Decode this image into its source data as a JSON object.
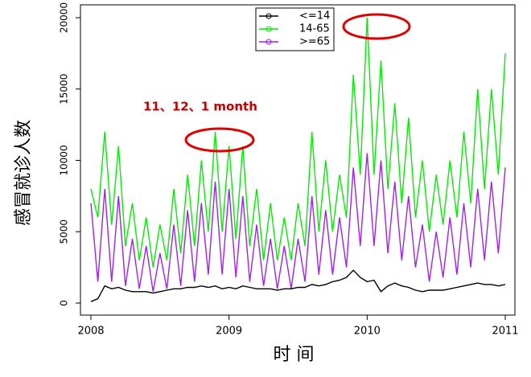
{
  "chart_data": {
    "type": "line",
    "y_label": "感冒就诊人数",
    "x_label": "时 间",
    "annotation": "11、12、1 month",
    "x": [
      2008.0,
      2008.05,
      2008.1,
      2008.15,
      2008.2,
      2008.25,
      2008.3,
      2008.35,
      2008.4,
      2008.45,
      2008.5,
      2008.55,
      2008.6,
      2008.65,
      2008.7,
      2008.75,
      2008.8,
      2008.85,
      2008.9,
      2008.95,
      2009.0,
      2009.05,
      2009.1,
      2009.15,
      2009.2,
      2009.25,
      2009.3,
      2009.35,
      2009.4,
      2009.45,
      2009.5,
      2009.55,
      2009.6,
      2009.65,
      2009.7,
      2009.75,
      2009.8,
      2009.85,
      2009.9,
      2009.95,
      2010.0,
      2010.05,
      2010.1,
      2010.15,
      2010.2,
      2010.25,
      2010.3,
      2010.35,
      2010.4,
      2010.45,
      2010.5,
      2010.55,
      2010.6,
      2010.65,
      2010.7,
      2010.75,
      2010.8,
      2010.85,
      2010.9,
      2010.95,
      2011.0
    ],
    "series": [
      {
        "name": "<=14",
        "color": "#000000",
        "values": [
          100,
          300,
          1200,
          1000,
          1100,
          900,
          800,
          800,
          800,
          700,
          800,
          900,
          1000,
          1000,
          1100,
          1100,
          1200,
          1100,
          1200,
          1000,
          1100,
          1000,
          1200,
          1100,
          1000,
          1000,
          1000,
          900,
          1000,
          1000,
          1100,
          1100,
          1300,
          1200,
          1300,
          1500,
          1600,
          1800,
          2300,
          1800,
          1500,
          1600,
          800,
          1200,
          1400,
          1200,
          1100,
          900,
          800,
          900,
          900,
          900,
          1000,
          1100,
          1200,
          1300,
          1400,
          1300,
          1300,
          1200,
          1300
        ]
      },
      {
        "name": "14-65",
        "color": "#00ee00",
        "values": [
          8000,
          6000,
          12000,
          5500,
          11000,
          4000,
          7000,
          3000,
          6000,
          2500,
          5500,
          3000,
          8000,
          3500,
          9000,
          4000,
          10000,
          5000,
          12000,
          5000,
          11000,
          4500,
          11000,
          4000,
          8000,
          3000,
          7000,
          3000,
          6000,
          3000,
          7000,
          4000,
          12000,
          5000,
          10000,
          5000,
          9000,
          6000,
          16000,
          9000,
          20000,
          9000,
          17000,
          8000,
          14000,
          7000,
          13000,
          6000,
          10000,
          5000,
          9000,
          5500,
          10000,
          6000,
          12000,
          7000,
          15000,
          8000,
          15000,
          9000,
          17500
        ]
      },
      {
        "name": ">=65",
        "color": "#a020f0",
        "values": [
          7000,
          1500,
          8000,
          1500,
          7500,
          1200,
          4500,
          1000,
          4000,
          800,
          3500,
          1000,
          5500,
          1200,
          6500,
          1500,
          7000,
          2000,
          8500,
          2000,
          8000,
          1800,
          7500,
          1500,
          5500,
          1200,
          4500,
          1000,
          4000,
          1000,
          4500,
          1500,
          7500,
          2000,
          6500,
          2000,
          6000,
          2500,
          9500,
          4000,
          10500,
          4000,
          10000,
          3500,
          8500,
          3000,
          7500,
          2500,
          5500,
          1500,
          5000,
          1800,
          6000,
          2000,
          7000,
          2500,
          8000,
          3000,
          8500,
          3500,
          9500
        ]
      }
    ],
    "xlim": [
      2008,
      2011
    ],
    "xticks": [
      2008,
      2009,
      2010,
      2011
    ],
    "ylim": [
      0,
      20000
    ],
    "yticks": [
      0,
      5000,
      10000,
      15000,
      20000
    ]
  }
}
